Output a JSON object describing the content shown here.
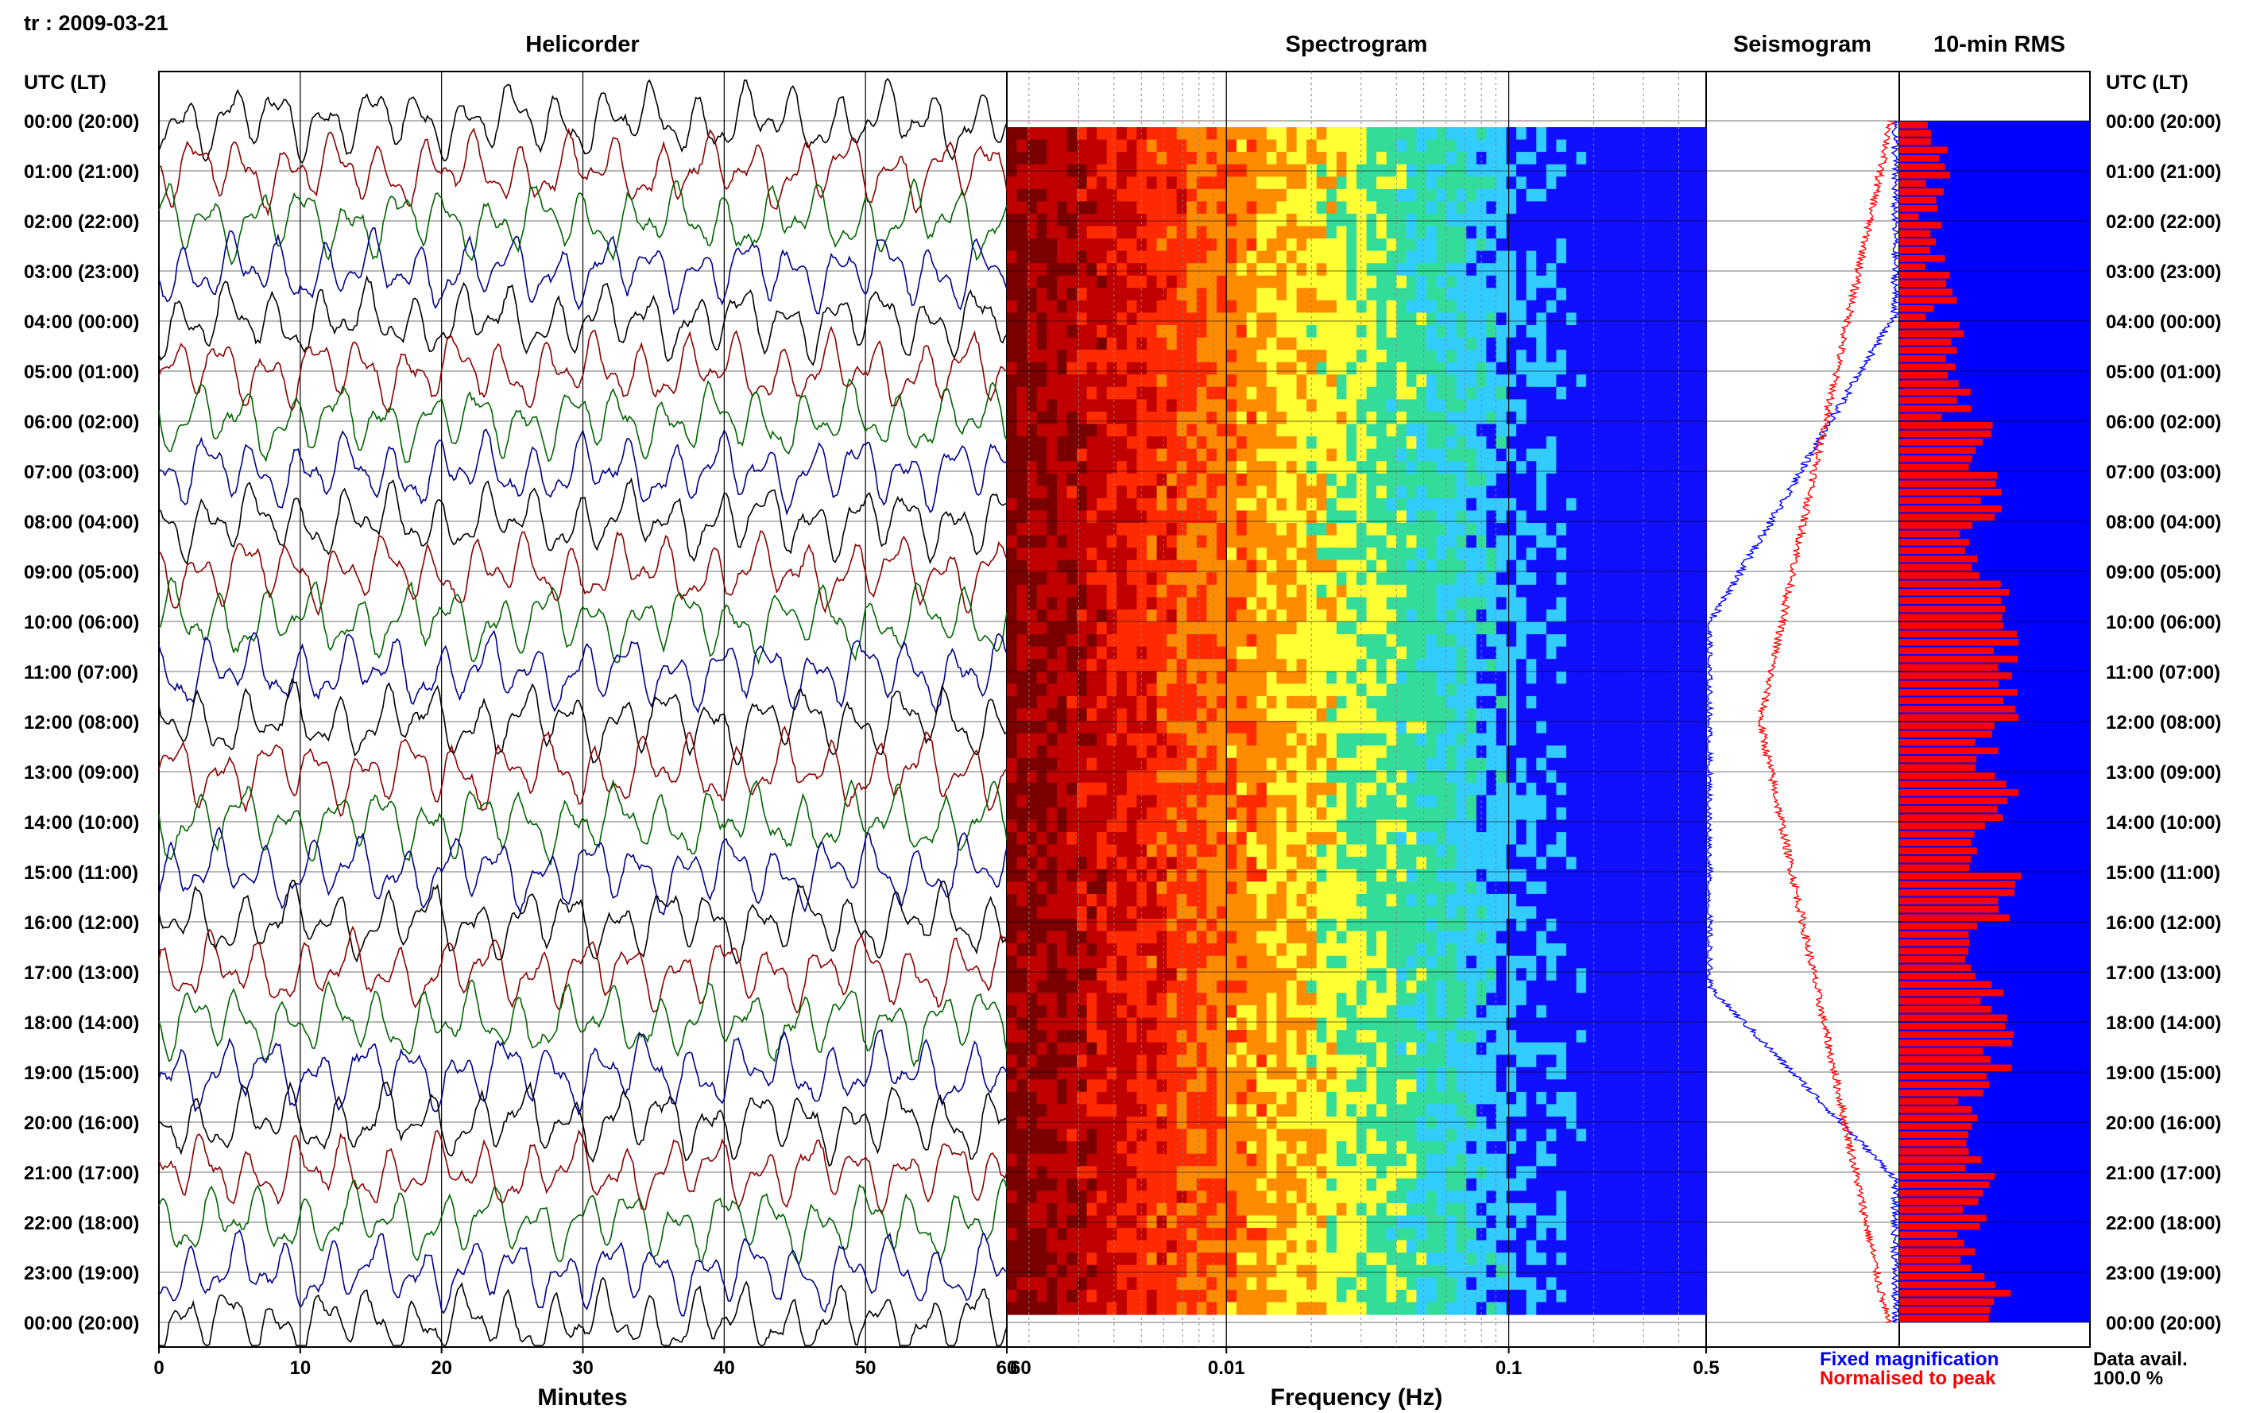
{
  "chart_data": [
    {
      "type": "line",
      "title": "Helicorder",
      "station": "tr",
      "date": "2009-03-21",
      "xlabel": "Minutes",
      "ylabel": "UTC (LT)",
      "xlim": [
        0,
        60
      ],
      "x_ticks": [
        "0",
        "10",
        "20",
        "30",
        "40",
        "50",
        "60"
      ],
      "y_ticks": [
        "00:00 (20:00)",
        "01:00 (21:00)",
        "02:00 (22:00)",
        "03:00 (23:00)",
        "04:00 (00:00)",
        "05:00 (01:00)",
        "06:00 (02:00)",
        "07:00 (03:00)",
        "08:00 (04:00)",
        "09:00 (05:00)",
        "10:00 (06:00)",
        "11:00 (07:00)",
        "12:00 (08:00)",
        "13:00 (09:00)",
        "14:00 (10:00)",
        "15:00 (11:00)",
        "16:00 (12:00)",
        "17:00 (13:00)",
        "18:00 (14:00)",
        "19:00 (15:00)",
        "20:00 (16:00)",
        "21:00 (17:00)",
        "22:00 (18:00)",
        "23:00 (19:00)",
        "00:00 (20:00)"
      ],
      "trace_colors": [
        "#000000",
        "#8b0000",
        "#006400",
        "#00008b"
      ],
      "grid": true
    },
    {
      "type": "heatmap",
      "title": "Spectrogram",
      "xlabel": "Frequency (Hz)",
      "x_scale": "log",
      "xlim": [
        0.00167,
        0.5
      ],
      "x_ticks": [
        "60",
        "0.01",
        "0.1",
        "0.5"
      ],
      "colormap": [
        "#7a0000",
        "#c00000",
        "#ff2a00",
        "#ff8c00",
        "#ffff33",
        "#33dd99",
        "#33ccff",
        "#1010ff"
      ],
      "grid": true
    },
    {
      "type": "line",
      "title": "Seismogram",
      "series": [
        {
          "name": "Fixed magnification",
          "color": "#0000ff"
        },
        {
          "name": "Normalised to peak",
          "color": "#ff0000"
        }
      ],
      "legend_position": "bottom"
    },
    {
      "type": "bar",
      "title": "10-min RMS",
      "orientation": "horizontal",
      "bar_color": "#ff0000",
      "background_color": "#0000ff",
      "hourly_relative_levels": [
        0.2,
        0.18,
        0.2,
        0.22,
        0.25,
        0.3,
        0.42,
        0.45,
        0.4,
        0.5,
        0.55,
        0.58,
        0.45,
        0.55,
        0.45,
        0.55,
        0.38,
        0.48,
        0.52,
        0.4,
        0.43,
        0.42,
        0.38,
        0.5
      ],
      "footer_label": "Data avail.",
      "data_availability": "100.0 %"
    }
  ],
  "right_axis_label": "UTC (LT)"
}
